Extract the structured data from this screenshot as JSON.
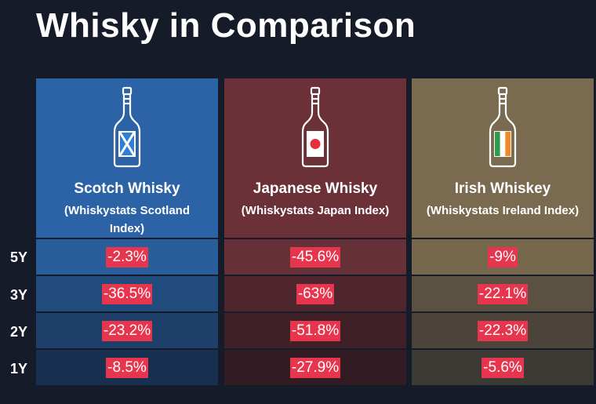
{
  "title": "Whisky in Comparison",
  "colors": {
    "background": "#151b28",
    "negative_badge": "#e8354e"
  },
  "chart_data": {
    "type": "table",
    "title": "Whisky in Comparison",
    "row_labels": [
      "5Y",
      "3Y",
      "2Y",
      "1Y"
    ],
    "columns": [
      {
        "name": "Scotch Whisky",
        "subtitle": "(Whiskystats Scotland Index)",
        "icon": "scotch-bottle-icon",
        "head_color": "#2c63a6",
        "row_colors": [
          "#2a5d9c",
          "#214b7d",
          "#1d3f69",
          "#17304f"
        ],
        "values": [
          "-2.3%",
          "-36.5%",
          "-23.2%",
          "-8.5%"
        ]
      },
      {
        "name": "Japanese Whisky",
        "subtitle": "(Whiskystats Japan Index)",
        "icon": "japanese-bottle-icon",
        "head_color": "#6b3038",
        "row_colors": [
          "#653038",
          "#4f262d",
          "#3f2027",
          "#321b22"
        ],
        "values": [
          "-45.6%",
          "-63%",
          "-51.8%",
          "-27.9%"
        ]
      },
      {
        "name": "Irish Whiskey",
        "subtitle": "(Whiskystats Ireland Index)",
        "icon": "irish-bottle-icon",
        "head_color": "#7a6a4f",
        "row_colors": [
          "#76674d",
          "#5b5142",
          "#4c443a",
          "#3c3a34"
        ],
        "values": [
          "-9%",
          "-22.1%",
          "-22.3%",
          "-5.6%"
        ]
      }
    ]
  }
}
